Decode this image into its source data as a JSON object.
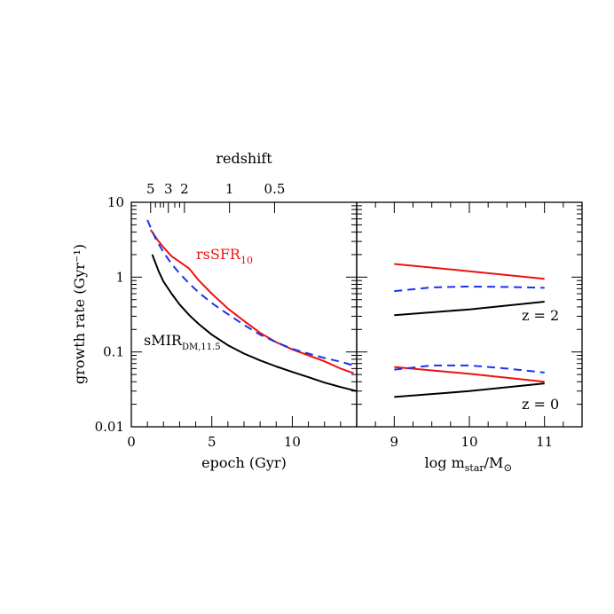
{
  "chart_data": [
    {
      "type": "line",
      "panel": "left",
      "xlabel": "epoch (Gyr)",
      "ylabel": "growth rate (Gyr⁻¹)",
      "xlim": [
        0,
        14
      ],
      "ylim": [
        0.01,
        10
      ],
      "y_scale": "log",
      "x_ticks": [
        0,
        5,
        10
      ],
      "y_ticks": [
        0.01,
        0.1,
        1,
        10
      ],
      "y_tick_labels": [
        "0.01",
        "0.1",
        "1",
        "10"
      ],
      "top_axis": {
        "label": "redshift",
        "ticks": [
          {
            "label": "5",
            "epoch": 1.2
          },
          {
            "label": "3",
            "epoch": 2.3
          },
          {
            "label": "2",
            "epoch": 3.3
          },
          {
            "label": "1",
            "epoch": 6.1
          },
          {
            "label": "0.5",
            "epoch": 8.9
          }
        ]
      },
      "series": [
        {
          "name": "rsSFR10",
          "label_main": "rsSFR",
          "label_sub": "10",
          "color": "#ee1111",
          "style": "solid",
          "x": [
            1.2,
            1.6,
            2.0,
            2.5,
            3.0,
            3.6,
            4.2,
            5.0,
            6.0,
            7.0,
            8.0,
            9.0,
            10.0,
            11.0,
            12.0,
            13.0,
            13.8
          ],
          "y": [
            4.3,
            3.2,
            2.5,
            1.9,
            1.6,
            1.3,
            0.9,
            0.6,
            0.38,
            0.26,
            0.18,
            0.135,
            0.108,
            0.09,
            0.075,
            0.06,
            0.052
          ]
        },
        {
          "name": "",
          "color": "#1a33ee",
          "style": "dashed",
          "x": [
            1.0,
            1.5,
            2.0,
            2.5,
            3.0,
            3.6,
            4.2,
            5.0,
            6.0,
            7.0,
            8.0,
            9.0,
            10.0,
            11.0,
            12.0,
            13.0,
            13.8
          ],
          "y": [
            5.8,
            3.3,
            2.15,
            1.5,
            1.12,
            0.82,
            0.62,
            0.45,
            0.32,
            0.23,
            0.17,
            0.135,
            0.11,
            0.095,
            0.083,
            0.074,
            0.066
          ]
        },
        {
          "name": "sMIRDM,11.5",
          "label_main": "sMIR",
          "label_sub": "DM,11.5",
          "color": "#000000",
          "style": "solid",
          "x": [
            1.3,
            1.7,
            2.0,
            2.5,
            3.0,
            3.6,
            4.2,
            5.0,
            6.0,
            7.0,
            8.0,
            9.0,
            10.0,
            11.0,
            12.0,
            13.0,
            14.0
          ],
          "y": [
            2.0,
            1.2,
            0.87,
            0.6,
            0.43,
            0.31,
            0.235,
            0.17,
            0.123,
            0.095,
            0.077,
            0.064,
            0.054,
            0.046,
            0.039,
            0.034,
            0.03
          ]
        }
      ]
    },
    {
      "type": "line",
      "panel": "right",
      "xlabel_main": "log m",
      "xlabel_sub": "star",
      "xlabel_tail": "/M",
      "xlabel_symbol": "⊙",
      "xlim": [
        8.5,
        11.5
      ],
      "ylim": [
        0.01,
        10
      ],
      "y_scale": "log",
      "x_ticks": [
        9,
        10,
        11
      ],
      "annotations": [
        "z = 2",
        "z = 0"
      ],
      "series": [
        {
          "name": "",
          "redshift": 2,
          "color": "#ee1111",
          "style": "solid",
          "x": [
            9,
            10,
            11
          ],
          "y": [
            1.5,
            1.2,
            0.95
          ]
        },
        {
          "name": "",
          "redshift": 2,
          "color": "#1a33ee",
          "style": "dashed",
          "x": [
            9,
            9.5,
            10,
            10.5,
            11
          ],
          "y": [
            0.65,
            0.73,
            0.75,
            0.74,
            0.72
          ]
        },
        {
          "name": "",
          "redshift": 2,
          "color": "#000000",
          "style": "solid",
          "x": [
            9,
            10,
            11
          ],
          "y": [
            0.31,
            0.37,
            0.47
          ]
        },
        {
          "name": "",
          "redshift": 0,
          "color": "#ee1111",
          "style": "solid",
          "x": [
            9,
            10,
            11
          ],
          "y": [
            0.063,
            0.051,
            0.04
          ]
        },
        {
          "name": "",
          "redshift": 0,
          "color": "#1a33ee",
          "style": "dashed",
          "x": [
            9,
            9.5,
            10,
            10.5,
            11
          ],
          "y": [
            0.058,
            0.066,
            0.066,
            0.06,
            0.053
          ]
        },
        {
          "name": "",
          "redshift": 0,
          "color": "#000000",
          "style": "solid",
          "x": [
            9,
            10,
            11
          ],
          "y": [
            0.025,
            0.03,
            0.038
          ]
        }
      ]
    }
  ]
}
